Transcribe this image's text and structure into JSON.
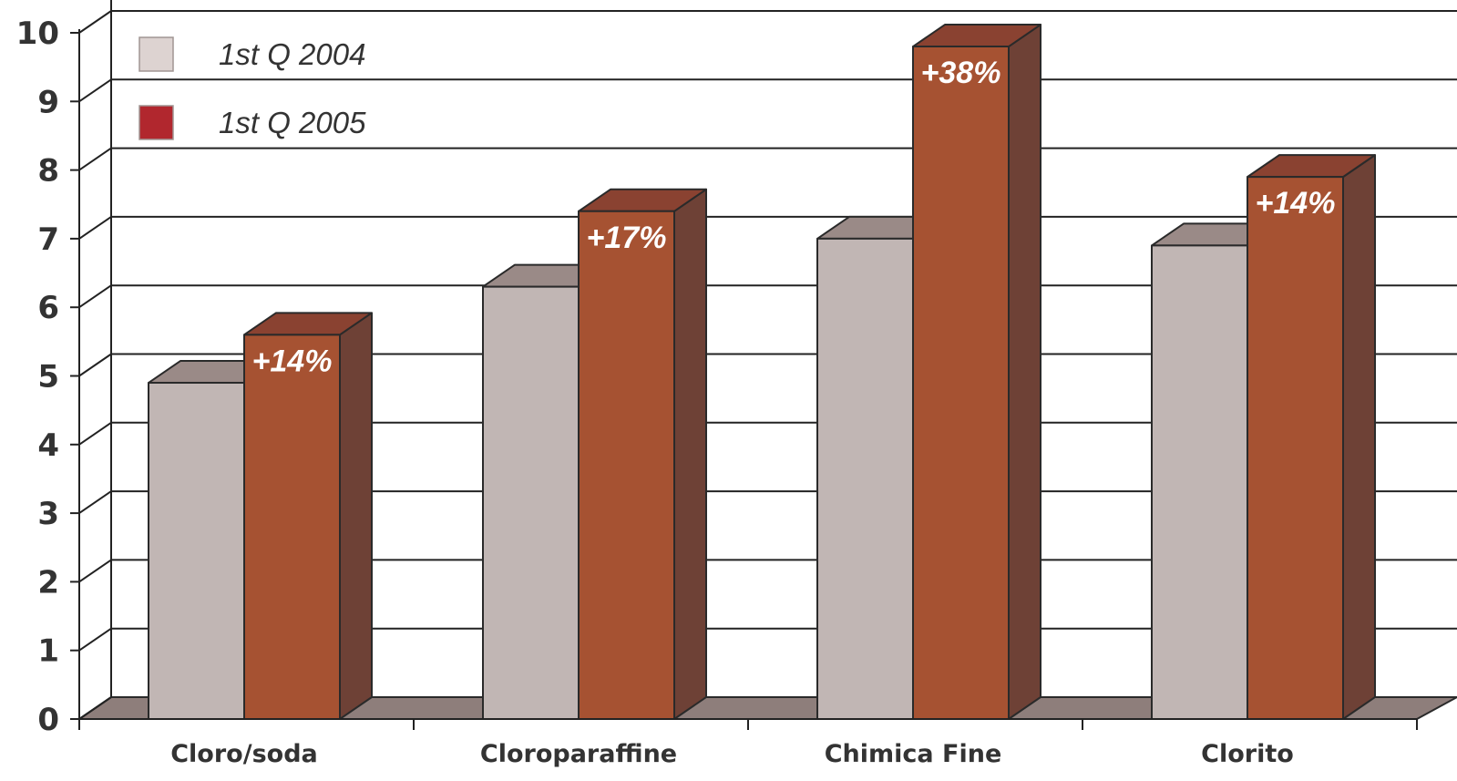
{
  "chart_data": {
    "type": "bar",
    "title": "",
    "xlabel": "",
    "ylabel": "",
    "ylim": [
      0,
      10
    ],
    "yticks": [
      "0",
      "1",
      "2",
      "3",
      "4",
      "5",
      "6",
      "7",
      "8",
      "9",
      "10"
    ],
    "grid": true,
    "legend_position": "top-left",
    "categories": [
      "Cloro/soda",
      "Cloroparaffine",
      "Chimica Fine",
      "Clorito"
    ],
    "series": [
      {
        "name": "1st Q 2004",
        "values": [
          4.9,
          6.3,
          7.0,
          6.9
        ],
        "color": "#c1b6b4"
      },
      {
        "name": "1st Q 2005",
        "values": [
          5.6,
          7.4,
          9.8,
          7.9
        ],
        "color": "#a65232"
      }
    ],
    "annotations": [
      "+14%",
      "+17%",
      "+38%",
      "+14%"
    ],
    "colors": {
      "legend_swatch_2004": "#ddd3d1",
      "legend_swatch_2005": "#b1272e",
      "floor": "#8e7e7b",
      "series_2004_top": "#9a8a87",
      "series_2005_top": "#8a4231",
      "series_2005_side": "#6e4136"
    }
  }
}
